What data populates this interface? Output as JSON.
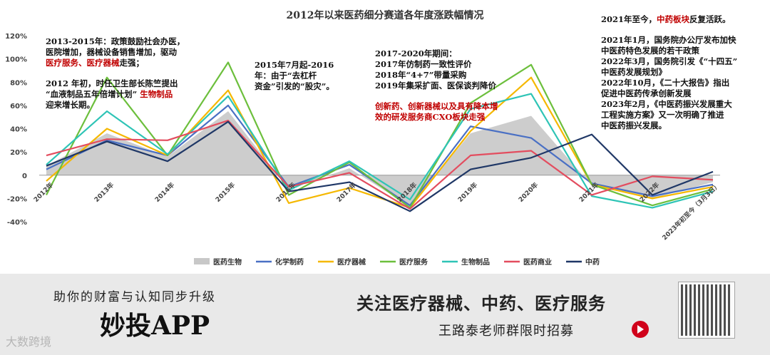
{
  "chart_data": {
    "type": "line",
    "title": "2012年以来医药细分赛道各年度涨跌幅情况",
    "categories": [
      "2012年",
      "2013年",
      "2014年",
      "2015年",
      "2016年",
      "2017年",
      "2018年",
      "2019年",
      "2020年",
      "2021年",
      "2022年",
      "2023年初至今（3月3日）"
    ],
    "yticks": [
      "120%",
      "100%",
      "80%",
      "60%",
      "40%",
      "20%",
      "0",
      "-20%",
      "-40%"
    ],
    "ylim": [
      -40,
      120
    ],
    "series": [
      {
        "name": "医药生物",
        "kind": "area",
        "color": "#c8c8c8",
        "values": [
          8,
          36,
          16,
          55,
          -12,
          6,
          -27,
          36,
          51,
          -9,
          -20,
          -6
        ]
      },
      {
        "name": "化学制药",
        "kind": "line",
        "color": "#4a70c4",
        "values": [
          5,
          30,
          17,
          60,
          -10,
          9,
          -26,
          42,
          32,
          -7,
          -18,
          -8
        ]
      },
      {
        "name": "医疗器械",
        "kind": "line",
        "color": "#f5b800",
        "values": [
          -5,
          40,
          17,
          73,
          -24,
          -11,
          -28,
          38,
          84,
          -8,
          -20,
          -10
        ]
      },
      {
        "name": "医疗服务",
        "kind": "line",
        "color": "#6cbf3c",
        "values": [
          -17,
          84,
          17,
          97,
          -17,
          11,
          -28,
          62,
          95,
          -8,
          -26,
          -12
        ]
      },
      {
        "name": "生物制品",
        "kind": "line",
        "color": "#2ec4b6",
        "values": [
          9,
          55,
          18,
          68,
          -13,
          12,
          -21,
          57,
          70,
          -18,
          -28,
          -14
        ]
      },
      {
        "name": "医药商业",
        "kind": "line",
        "color": "#e34d5f",
        "values": [
          17,
          31,
          30,
          47,
          -10,
          2,
          -29,
          17,
          21,
          -17,
          -1,
          -4
        ]
      },
      {
        "name": "中药",
        "kind": "line",
        "color": "#1f3766",
        "values": [
          8,
          29,
          12,
          46,
          -14,
          -6,
          -31,
          5,
          15,
          35,
          -17,
          3
        ]
      }
    ]
  },
  "annotations": {
    "a1": {
      "l1": "2013-2015年：政策鼓励社会办医，",
      "l2": "医院增加，器械设备销售增加，驱动",
      "l3_red": "医疗服务、医疗器械",
      "l3_tail": "走强；",
      "l4": "2012 年初，时任卫生部长陈竺提出",
      "l5": "“血液制品五年倍增计划”",
      "l5_red": "生物制品",
      "l6": "迎来增长期。"
    },
    "a2": {
      "l1": "2015年7月起-2016",
      "l2": "年：由于“去杠杆",
      "l3": "资金”引发的“股灾”。"
    },
    "a3": {
      "l1": "2017-2020年期间：",
      "l2": "2017年仿制药一致性评价",
      "l3": "2018年“4+7”带量采购",
      "l4": "2019年集采扩面、医保谈判降价",
      "l5_red": "创新药、创新器械以及具有降本增",
      "l6_red": "效的研发服务商CXO板块走强"
    },
    "a4": {
      "l1": "2021年至今，",
      "l1_red": "中药板块",
      "l1_tail": "反复活跃。",
      "l2": "2021年1月，国务院办公厅发布加快",
      "l3": "中医药特色发展的若干政策",
      "l4": "2022年3月，国务院引发《“十四五”",
      "l5": "中医药发展规划》",
      "l6": "2022年10月，《二十大报告》指出",
      "l7": "促进中医药传承创新发展",
      "l8": "2023年2月，《中医药振兴发展重大",
      "l9": "工程实施方案》又一次明确了推进",
      "l10": "中医药振兴发展。"
    }
  },
  "banner": {
    "slogan": "助你的财富与认知同步升级",
    "app": "妙投APP",
    "right_title": "关注医疗器械、中药、医疗服务",
    "right_sub": "王路泰老师群限时招募",
    "watermark": "大数跨境",
    "qr_icon": "qr-code-icon",
    "arrow_icon": "arrow-right-circle-icon"
  }
}
